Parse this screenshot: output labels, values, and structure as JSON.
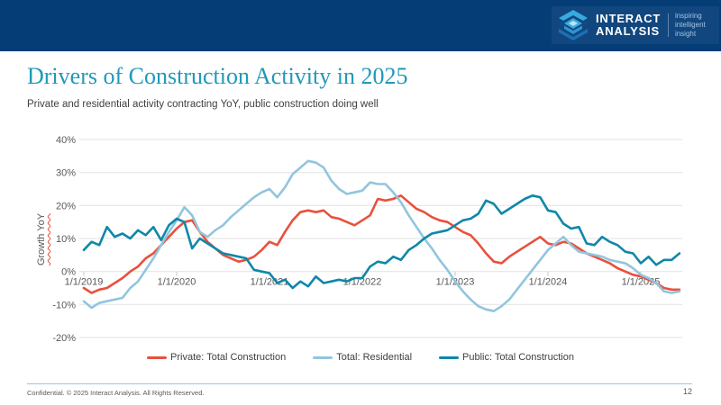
{
  "header": {
    "logo": {
      "brand_line1": "INTERACT",
      "brand_line2": "ANALYSIS",
      "tagline_line1": "inspiring",
      "tagline_line2": "intelligent insight"
    }
  },
  "slide": {
    "title": "Drivers of Construction Activity in 2025",
    "subtitle": "Private and residential activity contracting YoY, public construction doing well"
  },
  "footer": {
    "confidential": "Confidential. © 2025 Interact Analysis. All Rights Reserved.",
    "page_number": "12"
  },
  "colors": {
    "header_navy": "#053D76",
    "logo_panel_blue": "#11477E",
    "logo_icon_light_blue": "#37AADF",
    "logo_icon_mid_blue": "#1C70B5",
    "title_teal": "#2099B8",
    "private_red": "#E8513D",
    "residential_light_blue": "#92C5DE",
    "public_teal": "#0F87A8",
    "gridline_gray": "#E2E2E2",
    "axis_text_gray": "#595959",
    "footer_rule_blue": "#9CC3E5"
  },
  "chart_data": {
    "type": "line",
    "ylabel": "Growth YoY",
    "x_unit": "month",
    "x_range": "1/2019 - 6/2025",
    "x_labels": [
      "1/1/2019",
      "1/1/2020",
      "1/1/2021",
      "1/1/2022",
      "1/1/2023",
      "1/1/2024",
      "1/1/2025"
    ],
    "x_label_month_indices": [
      0,
      12,
      24,
      36,
      48,
      60,
      72
    ],
    "y_ticks": [
      "40%",
      "30%",
      "20%",
      "10%",
      "0%",
      "-10%",
      "-20%"
    ],
    "y_tick_values": [
      40,
      30,
      20,
      10,
      0,
      -10,
      -20
    ],
    "ylim": [
      -20,
      40
    ],
    "grid": "horizontal",
    "legend_position": "bottom",
    "series": [
      {
        "name": "Private: Total Construction",
        "color": "#E8513D",
        "values": [
          -5,
          -6.5,
          -5.5,
          -5,
          -3.5,
          -2,
          0,
          1.5,
          4,
          5.5,
          8,
          10.5,
          13,
          15,
          15.5,
          12,
          9,
          7,
          5,
          4,
          3,
          3.5,
          4.5,
          6.5,
          9,
          8,
          12,
          15.5,
          18,
          18.5,
          18,
          18.5,
          16.5,
          16,
          15,
          14,
          15.5,
          17,
          22,
          21.5,
          22,
          23,
          21,
          19,
          18,
          16.5,
          15.5,
          15,
          13.5,
          12,
          11,
          8.5,
          5.5,
          3,
          2.5,
          4.5,
          6,
          7.5,
          9,
          10.5,
          8.5,
          8,
          9,
          8.5,
          7,
          5.5,
          4.5,
          3.5,
          2.5,
          1,
          0,
          -1,
          -1.5,
          -2.5,
          -3.5,
          -5,
          -5.5,
          -5.5
        ]
      },
      {
        "name": "Total: Residential",
        "color": "#92C5DE",
        "values": [
          -9,
          -11,
          -9.5,
          -9,
          -8.5,
          -8,
          -5,
          -3,
          0.5,
          4,
          8,
          12,
          15.5,
          19.5,
          17,
          12,
          10.5,
          12.5,
          14,
          16.5,
          18.5,
          20.5,
          22.5,
          24,
          25,
          22.5,
          25.5,
          29.5,
          31.5,
          33.5,
          33,
          31.5,
          27.5,
          25,
          23.5,
          24,
          24.5,
          27,
          26.5,
          26.5,
          24,
          21,
          17,
          13.5,
          10,
          7,
          3.5,
          0.5,
          -3,
          -6,
          -8.5,
          -10.5,
          -11.5,
          -12,
          -10.5,
          -8.5,
          -5.5,
          -2.5,
          0.5,
          3.5,
          6.5,
          8.5,
          10.5,
          8,
          6,
          5.5,
          5,
          4.5,
          3.5,
          3,
          2.5,
          1,
          -1,
          -2,
          -3.5,
          -6,
          -6.5,
          -6
        ]
      },
      {
        "name": "Public: Total Construction",
        "color": "#0F87A8",
        "values": [
          6.5,
          9,
          8,
          13.5,
          10.5,
          11.5,
          10,
          12.5,
          11,
          13.5,
          9.5,
          14,
          16,
          15,
          7,
          10,
          8.5,
          7,
          5.5,
          5,
          4.5,
          4,
          0.5,
          0,
          -0.5,
          -3.5,
          -2.5,
          -5,
          -3,
          -4.5,
          -1.5,
          -3.5,
          -3,
          -2.5,
          -3,
          -2,
          -2,
          1.5,
          3,
          2.5,
          4.5,
          3.5,
          6.5,
          8,
          10,
          11.5,
          12,
          12.5,
          14,
          15.5,
          16,
          17.5,
          21.5,
          20.5,
          17.5,
          19,
          20.5,
          22,
          23,
          22.5,
          18.5,
          18,
          14.5,
          13,
          13.5,
          8.5,
          8,
          10.5,
          9,
          8,
          6,
          5.5,
          2.5,
          4.5,
          2,
          3.5,
          3.5,
          5.5
        ]
      }
    ]
  }
}
